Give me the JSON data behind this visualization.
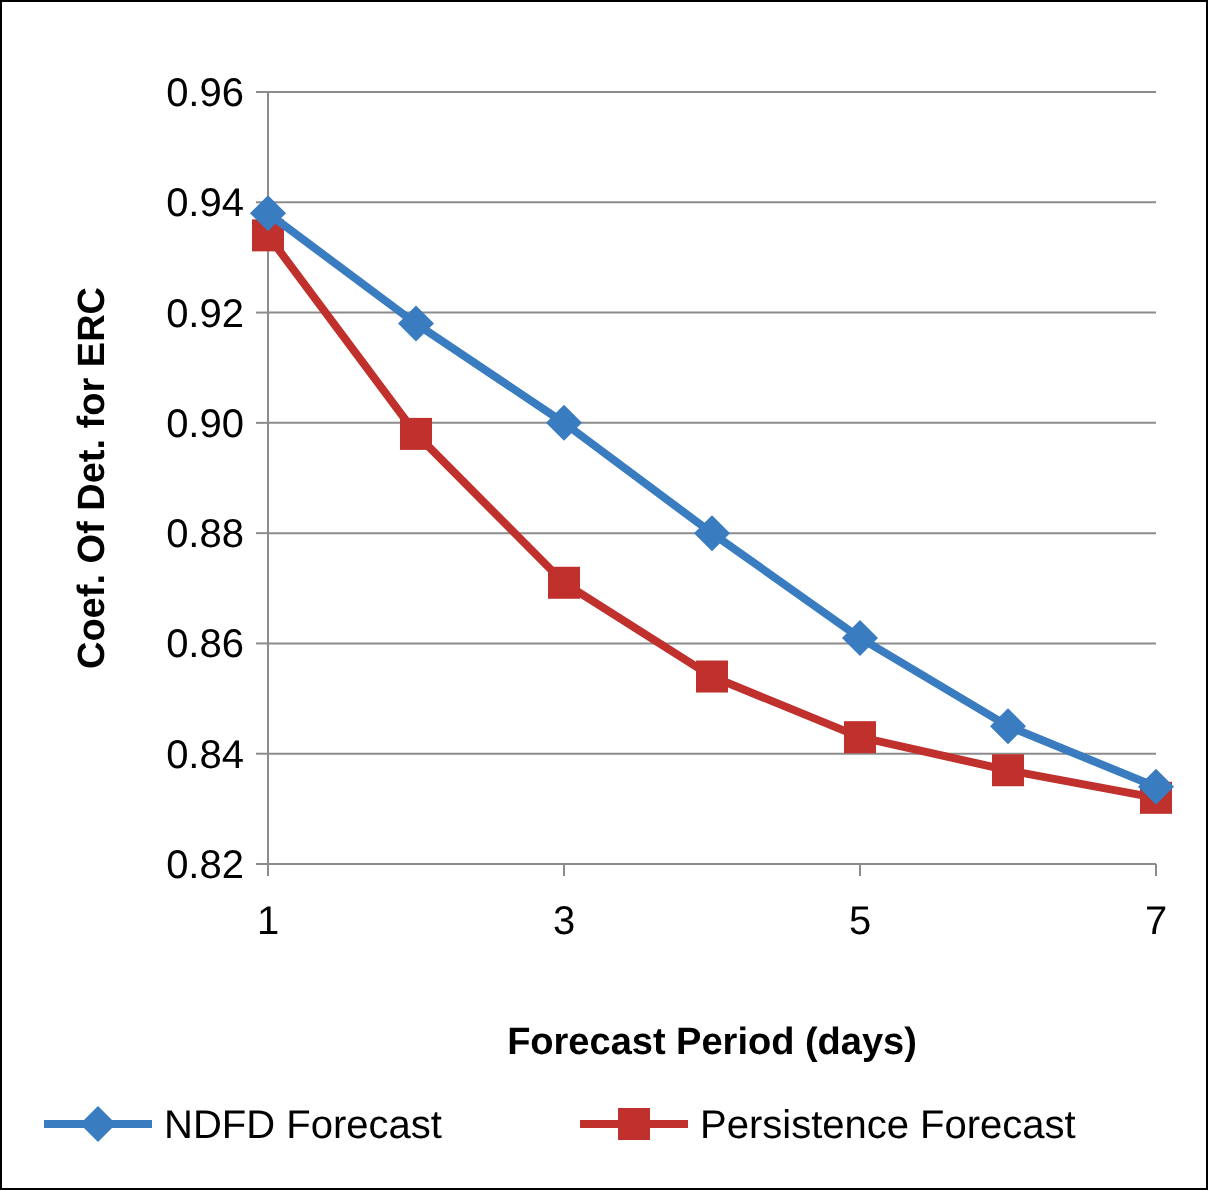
{
  "chart_data": {
    "type": "line",
    "xlabel": "Forecast Period (days)",
    "ylabel": "Coef. Of Det. for ERC",
    "x": [
      1,
      2,
      3,
      4,
      5,
      6,
      7
    ],
    "series": [
      {
        "name": "NDFD Forecast",
        "color": "#3a7cc0",
        "marker": "diamond",
        "values": [
          0.938,
          0.918,
          0.9,
          0.88,
          0.861,
          0.845,
          0.834
        ]
      },
      {
        "name": "Persistence Forecast",
        "color": "#c0302c",
        "marker": "square",
        "values": [
          0.934,
          0.898,
          0.871,
          0.854,
          0.843,
          0.837,
          0.832
        ]
      }
    ],
    "xlim": [
      1,
      7
    ],
    "xticks": [
      1,
      3,
      5,
      7
    ],
    "ylim": [
      0.82,
      0.96
    ],
    "yticks": [
      {
        "value": 0.82,
        "label": "0.82"
      },
      {
        "value": 0.84,
        "label": "0.84"
      },
      {
        "value": 0.86,
        "label": "0.86"
      },
      {
        "value": 0.88,
        "label": "0.88"
      },
      {
        "value": 0.9,
        "label": "0.90"
      },
      {
        "value": 0.92,
        "label": "0.92"
      },
      {
        "value": 0.94,
        "label": "0.94"
      },
      {
        "value": 0.96,
        "label": "0.96"
      }
    ],
    "grid": "y",
    "legend": "bottom",
    "line_style": "solid"
  }
}
